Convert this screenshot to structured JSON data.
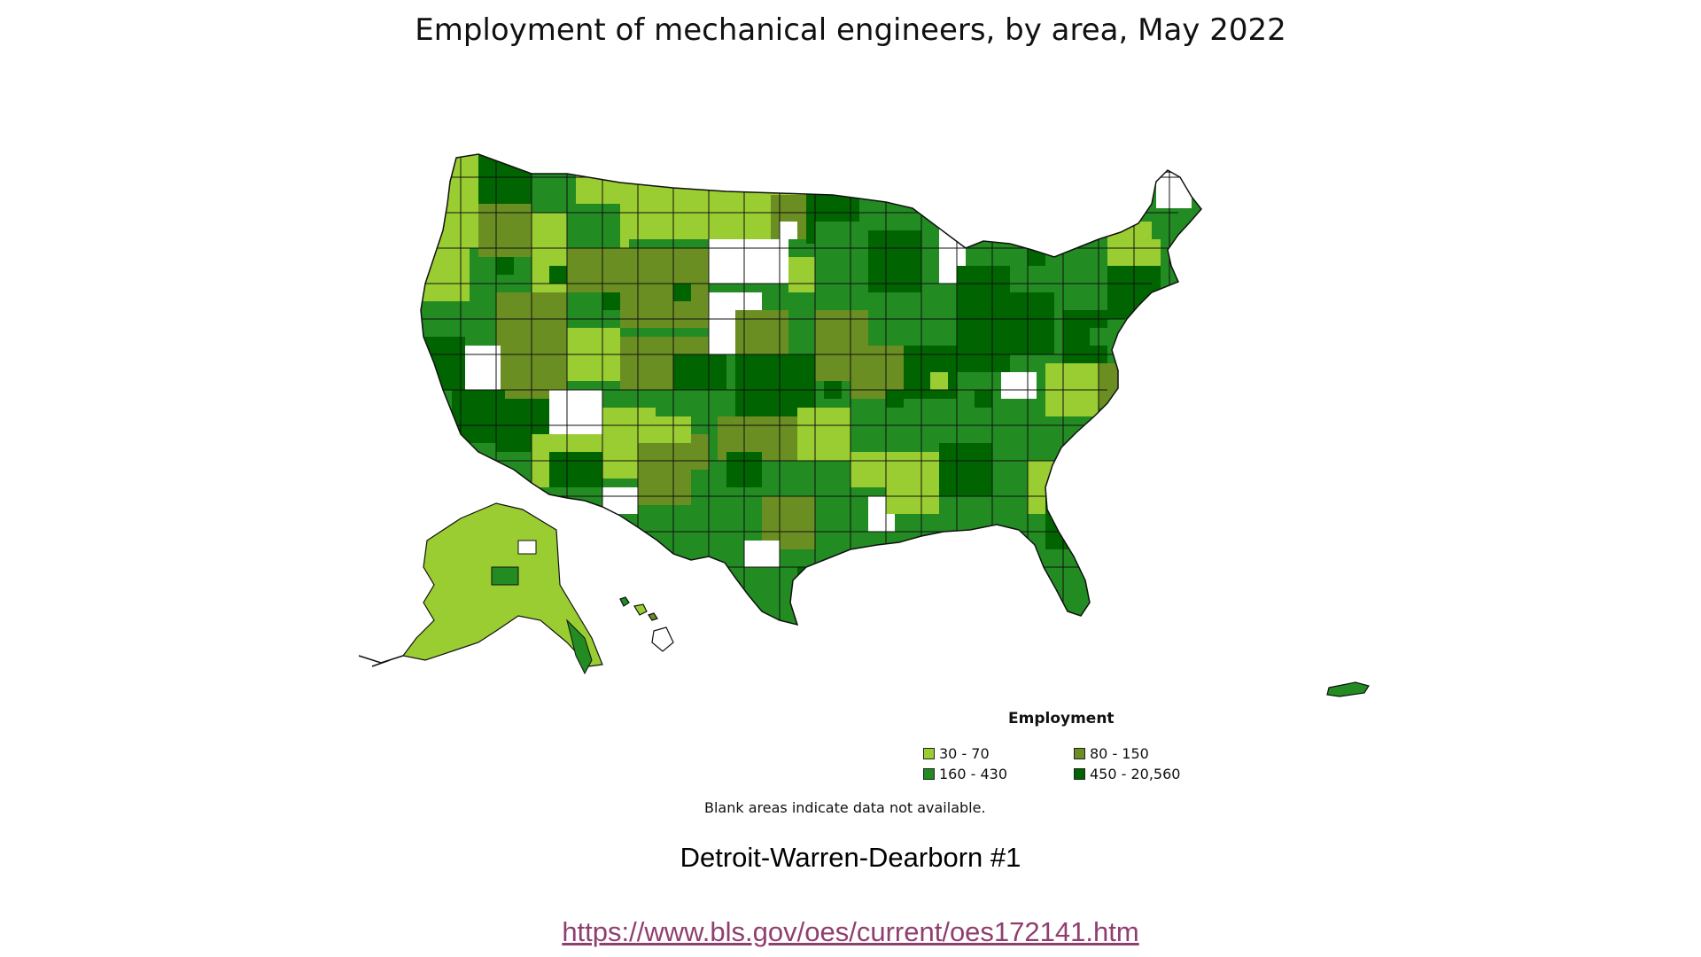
{
  "title": "Employment of mechanical engineers, by area, May 2022",
  "legend": {
    "title": "Employment",
    "items": [
      {
        "label": "30 - 70",
        "color": "#9acd32"
      },
      {
        "label": "80 - 150",
        "color": "#6b8e23"
      },
      {
        "label": "160 - 430",
        "color": "#228b22"
      },
      {
        "label": "450 - 20,560",
        "color": "#006400"
      }
    ]
  },
  "note": "Blank areas indicate data not available.",
  "caption": "Detroit-Warren-Dearborn #1",
  "source_url": "https://www.bls.gov/oes/current/oes172141.htm",
  "colors": {
    "border": "#111111",
    "no_data": "#ffffff",
    "link": "#8f3f6f"
  }
}
